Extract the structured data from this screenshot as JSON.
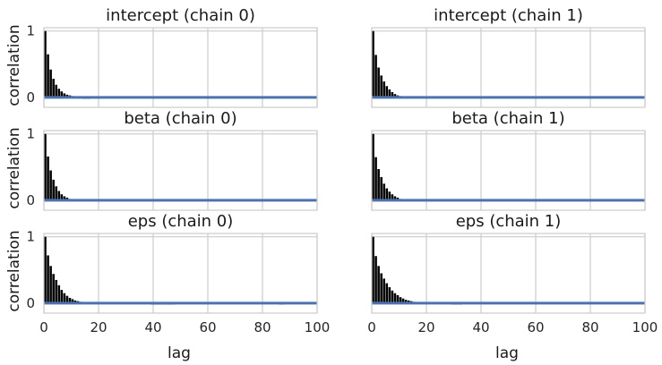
{
  "chart_data": {
    "type": "bar",
    "xlabel": "lag",
    "ylabel": "correlation",
    "xlim": [
      0,
      100
    ],
    "ylim": [
      -0.15,
      1.05
    ],
    "xticks": [
      0,
      20,
      40,
      60,
      80,
      100
    ],
    "yticks": [
      0,
      1
    ],
    "grid": true,
    "panels": [
      {
        "title": "intercept (chain 0)",
        "values": [
          1.0,
          0.65,
          0.42,
          0.28,
          0.19,
          0.13,
          0.09,
          0.06,
          0.04,
          0.03,
          0.02,
          0.01,
          0.01,
          -0.01,
          -0.02,
          -0.02,
          -0.02,
          -0.01,
          0.0,
          0.0,
          0.0,
          0.0,
          0.0,
          0.0,
          0.0,
          0.0,
          0.0,
          0.0,
          0.0,
          0.0,
          0.0,
          0.0,
          0.0,
          0.0,
          0.0,
          0.0,
          0.0,
          0.0,
          0.0,
          0.0,
          0.0,
          0.0,
          0.0,
          0.0,
          0.0,
          0.0,
          0.0,
          0.0,
          0.0,
          0.0,
          0.0,
          0.0,
          0.0,
          0.0,
          0.0,
          0.0,
          0.0,
          0.0,
          0.0,
          0.0,
          0.0,
          0.0,
          0.0,
          0.0,
          0.0,
          0.0,
          0.0,
          0.0,
          0.0,
          0.0,
          -0.01,
          0.0,
          0.0,
          0.0,
          0.0,
          0.0,
          0.0,
          0.0,
          0.0,
          0.0,
          0.0,
          0.0,
          0.0,
          0.0,
          0.0,
          0.0,
          0.0,
          0.0,
          0.0,
          0.0,
          0.0,
          0.0,
          0.0,
          0.0,
          0.0,
          0.0,
          0.0,
          0.0,
          0.0,
          0.0
        ]
      },
      {
        "title": "intercept (chain 1)",
        "values": [
          1.0,
          0.64,
          0.45,
          0.33,
          0.24,
          0.17,
          0.12,
          0.08,
          0.05,
          0.03,
          0.02,
          0.01,
          0.01,
          0.0,
          0.0,
          0.0,
          0.0,
          0.0,
          0.0,
          0.0,
          0.0,
          0.0,
          0.0,
          0.0,
          0.0,
          0.0,
          0.0,
          0.0,
          0.0,
          0.0,
          0.0,
          0.0,
          0.0,
          0.0,
          0.0,
          0.0,
          0.0,
          0.0,
          0.0,
          0.0,
          0.0,
          0.0,
          0.0,
          0.0,
          0.0,
          0.0,
          0.0,
          0.0,
          0.0,
          0.0,
          0.0,
          0.0,
          0.0,
          0.0,
          0.0,
          0.0,
          0.0,
          0.0,
          0.0,
          0.0,
          0.0,
          0.0,
          0.0,
          0.0,
          0.0,
          0.0,
          0.0,
          0.0,
          0.0,
          0.0,
          0.0,
          0.0,
          0.0,
          0.0,
          0.0,
          0.0,
          0.0,
          0.0,
          0.0,
          0.0,
          0.0,
          0.0,
          0.0,
          0.0,
          0.0,
          0.0,
          0.0,
          0.0,
          0.0,
          0.0,
          0.0,
          0.0,
          0.0,
          0.0,
          0.0,
          0.0,
          0.0,
          0.0,
          0.0,
          0.0
        ]
      },
      {
        "title": "beta (chain 0)",
        "values": [
          1.0,
          0.66,
          0.45,
          0.31,
          0.21,
          0.14,
          0.09,
          0.06,
          0.04,
          0.02,
          0.01,
          0.01,
          0.0,
          0.0,
          0.0,
          0.0,
          0.0,
          0.0,
          0.0,
          0.0,
          0.0,
          0.0,
          0.0,
          0.0,
          0.0,
          0.0,
          0.0,
          0.0,
          0.0,
          0.0,
          0.0,
          0.0,
          0.0,
          0.0,
          0.0,
          0.0,
          0.0,
          0.0,
          0.0,
          0.0,
          0.0,
          0.0,
          0.0,
          0.0,
          0.0,
          0.0,
          0.0,
          0.0,
          0.0,
          0.0,
          0.0,
          0.0,
          0.0,
          0.0,
          0.0,
          0.0,
          0.0,
          0.0,
          0.0,
          0.0,
          -0.01,
          0.0,
          0.0,
          0.0,
          0.0,
          0.0,
          0.0,
          0.0,
          0.0,
          0.0,
          0.0,
          0.0,
          0.0,
          0.0,
          0.0,
          0.0,
          0.0,
          0.0,
          0.0,
          0.0,
          0.0,
          0.0,
          0.0,
          0.0,
          0.0,
          0.0,
          0.0,
          0.0,
          0.0,
          0.0,
          0.0,
          0.0,
          0.0,
          0.0,
          0.0,
          0.0,
          0.0,
          0.0,
          0.0,
          0.0
        ]
      },
      {
        "title": "beta (chain 1)",
        "values": [
          1.0,
          0.65,
          0.47,
          0.35,
          0.25,
          0.18,
          0.13,
          0.09,
          0.06,
          0.04,
          0.02,
          0.01,
          0.01,
          0.0,
          0.0,
          0.0,
          0.0,
          0.0,
          0.0,
          0.0,
          0.0,
          0.0,
          0.0,
          0.0,
          0.0,
          0.0,
          0.0,
          0.0,
          0.0,
          0.0,
          0.0,
          0.0,
          0.0,
          0.0,
          0.0,
          0.0,
          0.0,
          0.0,
          0.0,
          0.0,
          0.0,
          0.0,
          0.0,
          0.0,
          0.0,
          0.0,
          0.0,
          0.0,
          0.0,
          0.0,
          0.0,
          0.0,
          0.0,
          0.0,
          0.0,
          0.0,
          0.0,
          0.0,
          0.0,
          0.0,
          0.0,
          0.0,
          0.0,
          0.0,
          0.0,
          0.0,
          0.0,
          0.0,
          0.0,
          0.0,
          0.0,
          0.0,
          0.0,
          0.0,
          0.0,
          0.0,
          0.0,
          0.0,
          0.0,
          0.0,
          0.0,
          0.0,
          0.0,
          0.0,
          0.0,
          0.0,
          0.0,
          0.0,
          0.0,
          0.0,
          0.0,
          0.0,
          0.0,
          0.0,
          0.0,
          0.0,
          0.0,
          0.0,
          0.0,
          0.0
        ]
      },
      {
        "title": "eps (chain 0)",
        "values": [
          1.0,
          0.72,
          0.56,
          0.44,
          0.35,
          0.27,
          0.2,
          0.15,
          0.11,
          0.08,
          0.06,
          0.04,
          0.03,
          0.02,
          0.01,
          0.01,
          0.0,
          0.0,
          0.0,
          0.0,
          0.0,
          0.0,
          0.0,
          0.0,
          0.0,
          0.0,
          0.0,
          0.0,
          0.0,
          0.0,
          0.0,
          0.0,
          0.0,
          0.0,
          0.0,
          0.0,
          0.0,
          0.0,
          -0.01,
          -0.02,
          -0.02,
          -0.02,
          -0.02,
          -0.02,
          -0.02,
          -0.02,
          -0.02,
          -0.02,
          -0.01,
          -0.01,
          0.0,
          0.0,
          0.0,
          0.0,
          0.0,
          0.0,
          0.0,
          0.0,
          0.0,
          0.0,
          0.0,
          0.0,
          0.0,
          0.0,
          0.0,
          0.0,
          0.0,
          0.0,
          0.0,
          0.0,
          0.0,
          0.0,
          0.0,
          0.0,
          0.0,
          0.0,
          0.0,
          0.0,
          0.0,
          0.0,
          0.0,
          0.0,
          0.0,
          0.0,
          0.0,
          -0.01,
          -0.02,
          -0.02,
          -0.01,
          0.0,
          0.0,
          0.0,
          0.0,
          0.0,
          0.0,
          0.0,
          0.0,
          0.0,
          0.0,
          0.0
        ]
      },
      {
        "title": "eps (chain 1)",
        "values": [
          1.0,
          0.71,
          0.56,
          0.45,
          0.37,
          0.3,
          0.24,
          0.19,
          0.15,
          0.12,
          0.09,
          0.07,
          0.05,
          0.04,
          0.03,
          0.02,
          0.01,
          0.01,
          0.0,
          0.0,
          0.0,
          0.0,
          0.0,
          0.0,
          0.0,
          0.0,
          0.0,
          0.0,
          -0.01,
          -0.02,
          -0.02,
          -0.02,
          -0.02,
          -0.01,
          0.0,
          0.0,
          0.0,
          0.0,
          0.0,
          0.0,
          0.0,
          0.0,
          0.0,
          0.0,
          0.0,
          0.0,
          0.0,
          0.0,
          0.0,
          0.0,
          0.0,
          0.0,
          0.0,
          0.0,
          0.0,
          0.0,
          0.0,
          0.0,
          0.0,
          0.0,
          0.0,
          0.0,
          0.0,
          0.0,
          0.0,
          0.0,
          0.0,
          0.0,
          0.0,
          0.0,
          0.0,
          0.0,
          0.0,
          0.0,
          0.0,
          0.0,
          0.0,
          0.0,
          0.0,
          0.0,
          0.0,
          0.0,
          0.0,
          0.0,
          0.0,
          0.0,
          0.0,
          0.0,
          0.0,
          0.0,
          0.0,
          0.0,
          0.0,
          0.0,
          0.0,
          0.0,
          0.0,
          0.0,
          0.0,
          0.0
        ]
      }
    ]
  },
  "colors": {
    "bar": "#000000",
    "zero_line": "#4c72b0",
    "grid": "#cccccc",
    "frame": "#cccccc"
  }
}
